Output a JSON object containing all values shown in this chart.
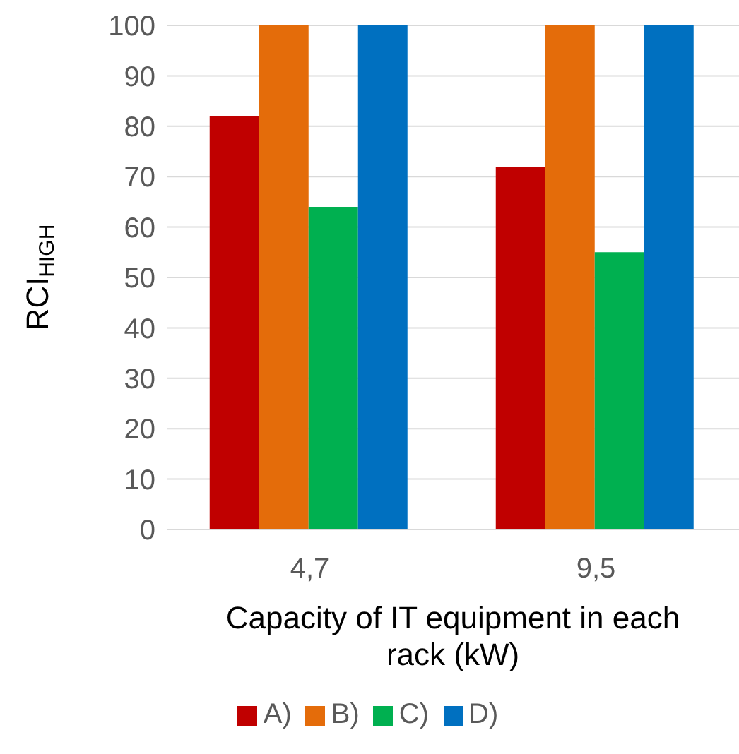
{
  "chart_data": {
    "type": "bar",
    "categories": [
      "4,7",
      "9,5"
    ],
    "xlabel": "Capacity of IT equipment in each rack (kW)",
    "ylabel": "RCI$_{HIGH}$",
    "series": [
      {
        "name": "A)",
        "color": "#c00000",
        "values": [
          82,
          72
        ]
      },
      {
        "name": "B)",
        "color": "#e46c0a",
        "values": [
          100,
          100
        ]
      },
      {
        "name": "C)",
        "color": "#00b050",
        "values": [
          64,
          55
        ]
      },
      {
        "name": "D)",
        "color": "#0070c0",
        "values": [
          100,
          100
        ]
      }
    ],
    "ylim": [
      0,
      100
    ],
    "yticks": [
      0,
      10,
      20,
      30,
      40,
      50,
      60,
      70,
      80,
      90,
      100
    ],
    "grid": "y",
    "legend": "bottom"
  }
}
